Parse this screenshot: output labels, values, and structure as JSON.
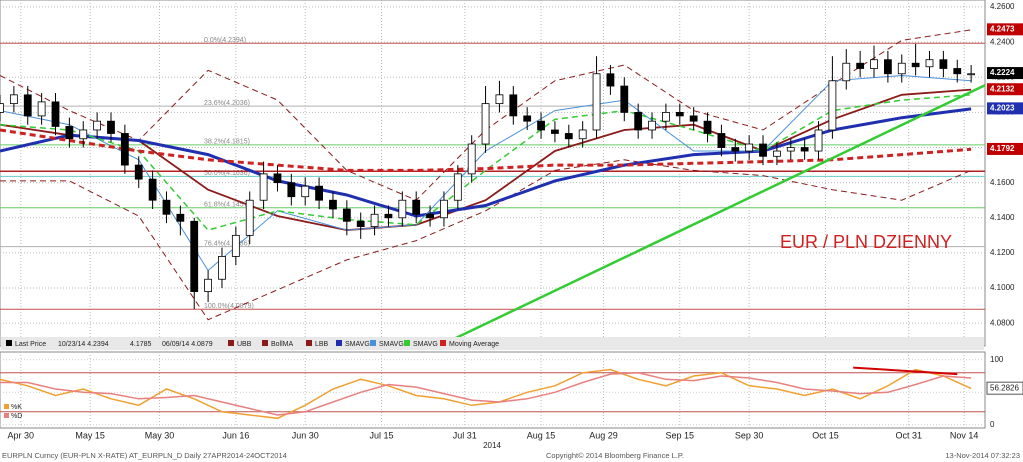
{
  "chart_data": {
    "type": "candlestick",
    "annotation": "EUR / PLN DZIENNY",
    "x_axis_year": "2014",
    "footer": {
      "left": "EURPLN Curncy (EUR-PLN X-RATE) AT_EURPLN_D  Daily 27APR2014-24OCT2014",
      "center": "Copyright© 2014 Bloomberg Finance L.P.",
      "right": "13-Nov-2014 07:32:23"
    },
    "xlim": [
      0,
      142
    ],
    "xticks": [
      {
        "value": 3,
        "label": "Apr 30"
      },
      {
        "value": 13,
        "label": "May 15"
      },
      {
        "value": 23,
        "label": "May 30"
      },
      {
        "value": 34,
        "label": "Jun 16"
      },
      {
        "value": 44,
        "label": "Jun 30"
      },
      {
        "value": 55,
        "label": "Jul 15"
      },
      {
        "value": 67,
        "label": "Jul 31"
      },
      {
        "value": 78,
        "label": "Aug 15"
      },
      {
        "value": 87,
        "label": "Aug 29"
      },
      {
        "value": 98,
        "label": "Sep 15"
      },
      {
        "value": 108,
        "label": "Sep 30"
      },
      {
        "value": 119,
        "label": "Oct 15"
      },
      {
        "value": 131,
        "label": "Oct 31"
      },
      {
        "value": 139,
        "label": "Nov 14"
      }
    ],
    "ylim": [
      4.067,
      4.264
    ],
    "yticks": [
      {
        "value": 4.08,
        "label": "4.0800"
      },
      {
        "value": 4.1,
        "label": "4.1000"
      },
      {
        "value": 4.12,
        "label": "4.1200"
      },
      {
        "value": 4.14,
        "label": "4.1400"
      },
      {
        "value": 4.16,
        "label": "4.1600"
      },
      {
        "value": 4.18,
        "label": "4.1800"
      },
      {
        "value": 4.2,
        "label": "4.2000"
      },
      {
        "value": 4.22,
        "label": "4.2200"
      },
      {
        "value": 4.24,
        "label": "4.2400"
      },
      {
        "value": 4.26,
        "label": "4.2600"
      }
    ],
    "grid": true,
    "x": [
      0,
      2,
      4,
      6,
      8,
      10,
      12,
      14,
      16,
      18,
      20,
      22,
      24,
      26,
      28,
      30,
      32,
      34,
      36,
      38,
      40,
      42,
      44,
      46,
      48,
      50,
      52,
      54,
      56,
      58,
      60,
      62,
      64,
      66,
      68,
      70,
      72,
      74,
      76,
      78,
      80,
      82,
      84,
      86,
      88,
      90,
      92,
      94,
      96,
      98,
      100,
      102,
      104,
      106,
      108,
      110,
      112,
      114,
      116,
      118,
      120,
      122,
      124,
      126,
      128,
      130,
      132,
      134,
      136,
      138,
      140
    ],
    "price": {
      "name": "Last Price",
      "open": [
        4.2,
        4.205,
        4.21,
        4.198,
        4.206,
        4.192,
        4.185,
        4.19,
        4.195,
        4.188,
        4.17,
        4.162,
        4.15,
        4.142,
        4.138,
        4.098,
        4.105,
        4.118,
        4.13,
        4.15,
        4.165,
        4.16,
        4.152,
        4.158,
        4.15,
        4.145,
        4.138,
        4.135,
        4.142,
        4.14,
        4.15,
        4.142,
        4.14,
        4.15,
        4.165,
        4.182,
        4.205,
        4.21,
        4.198,
        4.195,
        4.19,
        4.188,
        4.185,
        4.19,
        4.222,
        4.215,
        4.2,
        4.19,
        4.195,
        4.2,
        4.198,
        4.195,
        4.188,
        4.18,
        4.178,
        4.182,
        4.175,
        4.178,
        4.18,
        4.178,
        4.19,
        4.218,
        4.228,
        4.225,
        4.23,
        4.222,
        4.228,
        4.226,
        4.23,
        4.225,
        4.222
      ],
      "high": [
        4.21,
        4.215,
        4.215,
        4.211,
        4.211,
        4.197,
        4.195,
        4.2,
        4.2,
        4.193,
        4.175,
        4.167,
        4.155,
        4.147,
        4.14,
        4.11,
        4.123,
        4.135,
        4.155,
        4.172,
        4.17,
        4.165,
        4.163,
        4.163,
        4.155,
        4.15,
        4.143,
        4.147,
        4.147,
        4.155,
        4.155,
        4.147,
        4.155,
        4.17,
        4.187,
        4.215,
        4.218,
        4.215,
        4.203,
        4.2,
        4.195,
        4.193,
        4.195,
        4.232,
        4.227,
        4.22,
        4.205,
        4.2,
        4.205,
        4.205,
        4.203,
        4.2,
        4.193,
        4.185,
        4.187,
        4.187,
        4.183,
        4.185,
        4.185,
        4.195,
        4.232,
        4.236,
        4.235,
        4.238,
        4.235,
        4.233,
        4.239,
        4.235,
        4.235,
        4.23,
        4.227
      ],
      "low": [
        4.195,
        4.2,
        4.193,
        4.193,
        4.187,
        4.18,
        4.18,
        4.185,
        4.183,
        4.165,
        4.157,
        4.145,
        4.137,
        4.13,
        4.088,
        4.092,
        4.1,
        4.113,
        4.125,
        4.145,
        4.155,
        4.147,
        4.147,
        4.145,
        4.14,
        4.13,
        4.128,
        4.13,
        4.135,
        4.135,
        4.137,
        4.135,
        4.135,
        4.145,
        4.16,
        4.177,
        4.2,
        4.193,
        4.19,
        4.185,
        4.183,
        4.18,
        4.18,
        4.185,
        4.21,
        4.195,
        4.185,
        4.185,
        4.19,
        4.193,
        4.19,
        4.183,
        4.175,
        4.172,
        4.173,
        4.17,
        4.17,
        4.173,
        4.173,
        4.173,
        4.185,
        4.213,
        4.22,
        4.22,
        4.217,
        4.217,
        4.221,
        4.22,
        4.22,
        4.217,
        4.217
      ],
      "close": [
        4.205,
        4.21,
        4.198,
        4.206,
        4.192,
        4.185,
        4.19,
        4.195,
        4.188,
        4.17,
        4.162,
        4.15,
        4.142,
        4.138,
        4.098,
        4.105,
        4.118,
        4.13,
        4.15,
        4.165,
        4.16,
        4.152,
        4.158,
        4.15,
        4.145,
        4.138,
        4.135,
        4.142,
        4.14,
        4.15,
        4.142,
        4.14,
        4.15,
        4.165,
        4.182,
        4.205,
        4.21,
        4.198,
        4.195,
        4.19,
        4.188,
        4.185,
        4.19,
        4.222,
        4.215,
        4.2,
        4.19,
        4.195,
        4.2,
        4.198,
        4.195,
        4.188,
        4.18,
        4.178,
        4.182,
        4.175,
        4.178,
        4.18,
        4.178,
        4.19,
        4.218,
        4.228,
        4.225,
        4.23,
        4.222,
        4.228,
        4.226,
        4.23,
        4.225,
        4.222,
        4.222
      ]
    },
    "legend_notes": [
      "10/23/14 4.2394",
      "4.1785",
      "06/09/14 4.0879"
    ],
    "line_x": [
      0,
      10,
      20,
      30,
      40,
      50,
      60,
      70,
      80,
      90,
      100,
      110,
      120,
      130,
      140
    ],
    "lines": [
      {
        "name": "UBB",
        "color": "#8b1a1a",
        "dash": true,
        "width": 1,
        "values": [
          4.221,
          4.201,
          4.184,
          4.224,
          4.207,
          4.167,
          4.15,
          4.19,
          4.218,
          4.227,
          4.201,
          4.19,
          4.216,
          4.241,
          4.247
        ]
      },
      {
        "name": "BollMA",
        "color": "#8b1a1a",
        "dash": false,
        "width": 1.8,
        "values": [
          4.193,
          4.187,
          4.184,
          4.156,
          4.141,
          4.133,
          4.136,
          4.15,
          4.178,
          4.19,
          4.193,
          4.178,
          4.196,
          4.21,
          4.213
        ]
      },
      {
        "name": "LBB",
        "color": "#8b1a1a",
        "dash": true,
        "width": 1,
        "values": [
          4.161,
          4.161,
          4.141,
          4.082,
          4.099,
          4.116,
          4.127,
          4.144,
          4.167,
          4.173,
          4.167,
          4.164,
          4.156,
          4.15,
          4.167
        ]
      },
      {
        "name": "SMAVG",
        "color": "#1f2fb0",
        "dash": false,
        "width": 3,
        "values": [
          4.178,
          4.187,
          4.184,
          4.176,
          4.161,
          4.153,
          4.141,
          4.147,
          4.161,
          4.17,
          4.176,
          4.178,
          4.19,
          4.197,
          4.202
        ]
      },
      {
        "name": "SMAVG",
        "color": "#4a90d9",
        "dash": false,
        "width": 1,
        "values": [
          4.201,
          4.193,
          4.173,
          4.11,
          4.144,
          4.133,
          4.136,
          4.178,
          4.201,
          4.207,
          4.178,
          4.178,
          4.218,
          4.221,
          4.218
        ]
      },
      {
        "name": "SMAVG",
        "color": "#33cc33",
        "dash": true,
        "width": 1.5,
        "values": [
          4.193,
          4.19,
          4.178,
          4.133,
          4.144,
          4.139,
          4.136,
          4.167,
          4.196,
          4.201,
          4.19,
          4.178,
          4.201,
          4.207,
          4.21
        ]
      },
      {
        "name": "Moving Average",
        "color": "#cc2222",
        "dash": true,
        "width": 3,
        "values": [
          4.19,
          4.184,
          4.178,
          4.173,
          4.17,
          4.167,
          4.167,
          4.168,
          4.17,
          4.17,
          4.171,
          4.172,
          4.173,
          4.176,
          4.179
        ]
      }
    ],
    "trendline": {
      "color": "#33cc33",
      "x": [
        65,
        142
      ],
      "values": [
        4.0702,
        4.2155
      ]
    },
    "support_line": {
      "color": "#b22222",
      "value": 4.1665
    },
    "fib_levels": [
      {
        "value": 4.2394,
        "label": "0.0%(4.2394)",
        "color": "#c0504d"
      },
      {
        "value": 4.2036,
        "label": "23.6%(4.2036)",
        "color": "#b0b0b0"
      },
      {
        "value": 4.1815,
        "label": "38.2%(4.1815)",
        "color": "#66cc66"
      },
      {
        "value": 4.1636,
        "label": "50.0%(4.1636)",
        "color": "#66cccc"
      },
      {
        "value": 4.1457,
        "label": "61.8%(4.1457)",
        "color": "#66cc66"
      },
      {
        "value": 4.1236,
        "label": "76.4%(4.1236)",
        "color": "#b0b0b0"
      },
      {
        "value": 4.0879,
        "label": "100.0%(4.0879)",
        "color": "#c0504d"
      }
    ],
    "price_labels": [
      {
        "value": 4.2473,
        "color": "#c00000"
      },
      {
        "value": 4.2224,
        "color": "#000000"
      },
      {
        "value": 4.2132,
        "color": "#c00000"
      },
      {
        "value": 4.2023,
        "color": "#1f2fb0"
      },
      {
        "value": 4.1792,
        "color": "#c00000"
      }
    ],
    "oscillator": {
      "x": [
        0,
        4,
        8,
        12,
        16,
        20,
        24,
        28,
        32,
        36,
        40,
        44,
        48,
        52,
        56,
        60,
        64,
        68,
        72,
        76,
        80,
        84,
        88,
        92,
        96,
        100,
        104,
        108,
        112,
        116,
        120,
        124,
        128,
        132,
        136,
        140
      ],
      "ylim": [
        -5,
        112
      ],
      "yticks": [
        0,
        50,
        100
      ],
      "levels": [
        80,
        20
      ],
      "series": [
        {
          "name": "%K",
          "color": "#f0a030",
          "values": [
            70,
            60,
            45,
            55,
            40,
            30,
            55,
            40,
            20,
            15,
            10,
            30,
            55,
            70,
            60,
            45,
            40,
            30,
            35,
            50,
            60,
            80,
            85,
            70,
            60,
            75,
            80,
            60,
            55,
            45,
            55,
            40,
            60,
            85,
            75,
            56
          ]
        },
        {
          "name": "%D",
          "color": "#e88080",
          "values": [
            65,
            65,
            55,
            50,
            48,
            40,
            42,
            45,
            35,
            25,
            15,
            20,
            35,
            50,
            62,
            58,
            48,
            38,
            35,
            40,
            50,
            65,
            78,
            80,
            70,
            68,
            75,
            72,
            65,
            55,
            52,
            48,
            50,
            62,
            75,
            72
          ]
        }
      ],
      "last_label": 56.2826,
      "divergence": {
        "color": "#d00000",
        "x": [
          123,
          138
        ],
        "values": [
          88,
          78
        ]
      }
    }
  }
}
